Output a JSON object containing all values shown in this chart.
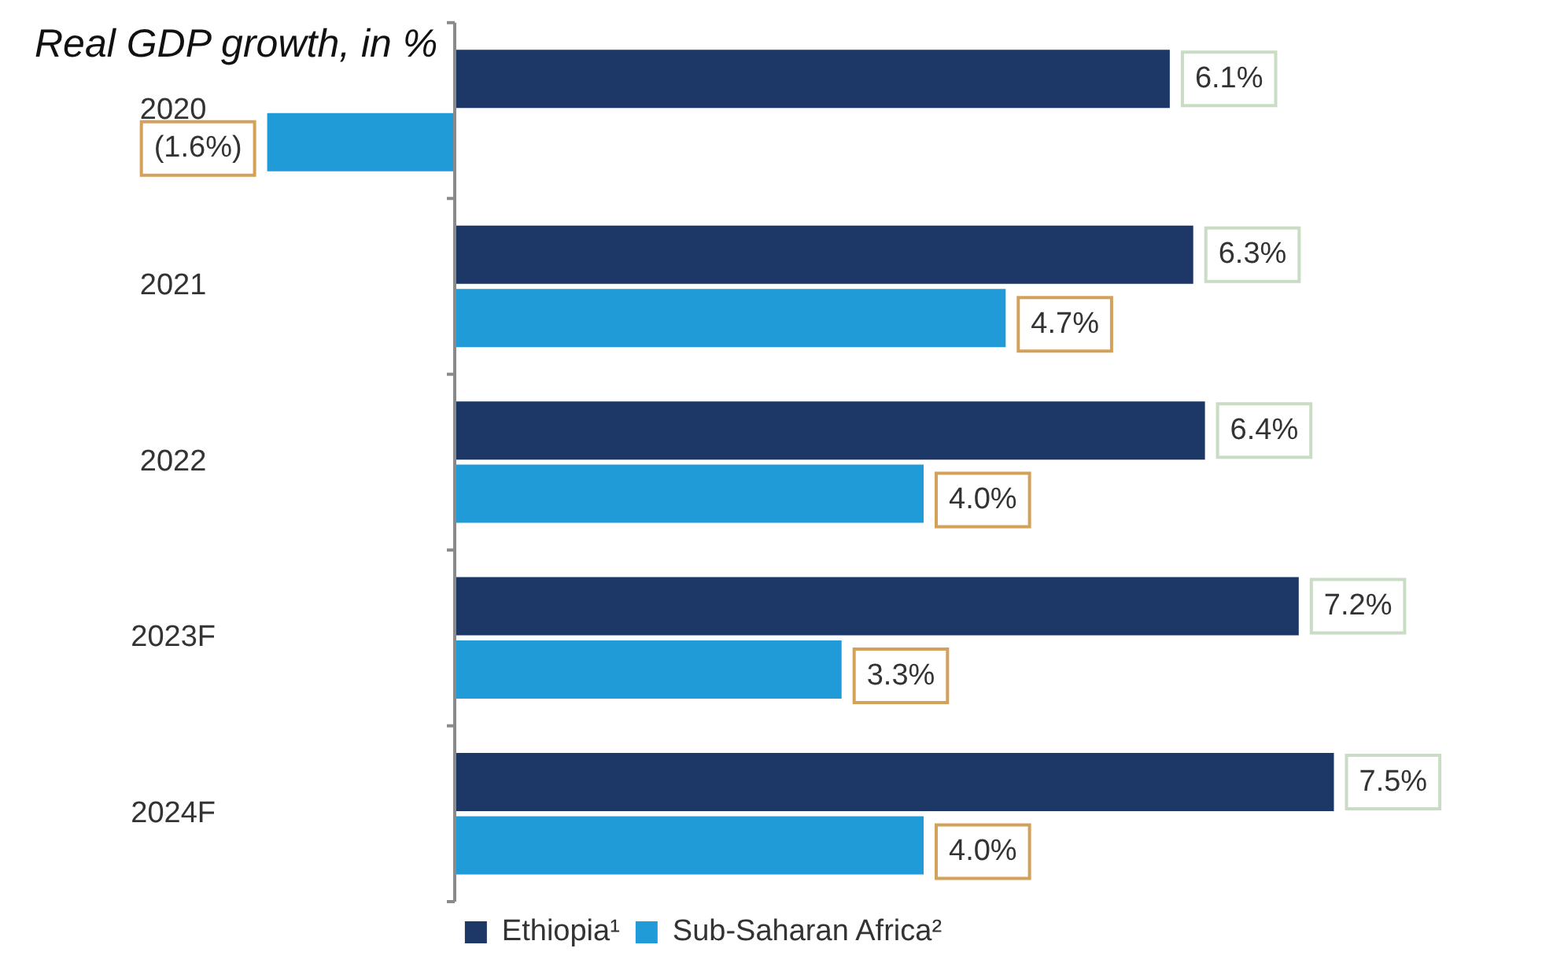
{
  "chart_data": {
    "type": "bar",
    "orientation": "horizontal",
    "title": "Real GDP growth, in %",
    "categories": [
      "2020",
      "2021",
      "2022",
      "2023F",
      "2024F"
    ],
    "series": [
      {
        "name": "Ethiopia¹",
        "color": "#1d3767",
        "values": [
          6.1,
          6.3,
          6.4,
          7.2,
          7.5
        ],
        "value_labels": [
          "6.1%",
          "6.3%",
          "6.4%",
          "7.2%",
          "7.5%"
        ]
      },
      {
        "name": "Sub-Saharan Africa²",
        "color": "#219bd7",
        "values": [
          -1.6,
          4.7,
          4.0,
          3.3,
          4.0
        ],
        "value_labels": [
          "(1.6%)",
          "4.7%",
          "4.0%",
          "3.3%",
          "4.0%"
        ]
      }
    ],
    "tick_labels": "y",
    "legend": "bottom"
  }
}
